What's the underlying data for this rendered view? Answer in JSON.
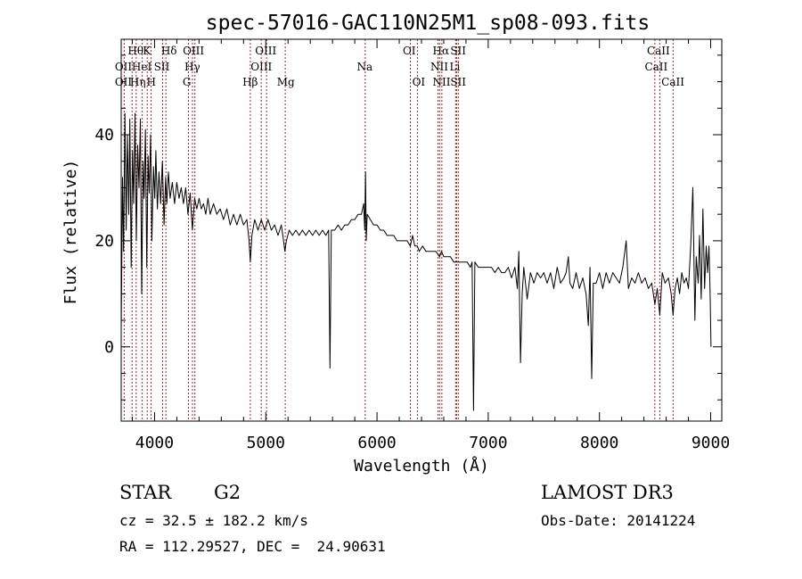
{
  "chart_data": {
    "type": "line",
    "title": "spec-57016-GAC110N25M1_sp08-093.fits",
    "xlabel": "Wavelength (Å)",
    "ylabel": "Flux (relative)",
    "xlim": [
      3700,
      9100
    ],
    "ylim": [
      -14,
      58
    ],
    "xticks": [
      4000,
      5000,
      6000,
      7000,
      8000,
      9000
    ],
    "xtick_labels": [
      "4000",
      "5000",
      "6000",
      "7000",
      "8000",
      "9000"
    ],
    "yticks": [
      0,
      20,
      40
    ],
    "ytick_labels": [
      "0",
      "20",
      "40"
    ],
    "grid": false,
    "legend": "none",
    "series": [
      {
        "name": "flux",
        "points": [
          [
            3700,
            3
          ],
          [
            3712,
            32
          ],
          [
            3722,
            18
          ],
          [
            3734,
            44
          ],
          [
            3745,
            22
          ],
          [
            3756,
            40
          ],
          [
            3768,
            25
          ],
          [
            3778,
            43
          ],
          [
            3790,
            15
          ],
          [
            3802,
            37
          ],
          [
            3812,
            27
          ],
          [
            3824,
            44
          ],
          [
            3836,
            20
          ],
          [
            3848,
            38
          ],
          [
            3860,
            30
          ],
          [
            3872,
            43
          ],
          [
            3884,
            10
          ],
          [
            3896,
            35
          ],
          [
            3906,
            28
          ],
          [
            3918,
            41
          ],
          [
            3930,
            15
          ],
          [
            3942,
            36
          ],
          [
            3952,
            29
          ],
          [
            3964,
            40
          ],
          [
            3976,
            20
          ],
          [
            3990,
            34
          ],
          [
            4002,
            28
          ],
          [
            4012,
            37
          ],
          [
            4025,
            26
          ],
          [
            4040,
            33
          ],
          [
            4055,
            27
          ],
          [
            4070,
            35
          ],
          [
            4085,
            23
          ],
          [
            4100,
            32
          ],
          [
            4110,
            27
          ],
          [
            4125,
            33
          ],
          [
            4140,
            28
          ],
          [
            4160,
            31
          ],
          [
            4180,
            27
          ],
          [
            4200,
            31
          ],
          [
            4220,
            28
          ],
          [
            4240,
            30
          ],
          [
            4260,
            27
          ],
          [
            4280,
            30
          ],
          [
            4300,
            25
          ],
          [
            4320,
            29
          ],
          [
            4340,
            22
          ],
          [
            4360,
            28
          ],
          [
            4380,
            26
          ],
          [
            4400,
            28
          ],
          [
            4420,
            26
          ],
          [
            4440,
            27
          ],
          [
            4460,
            25
          ],
          [
            4480,
            28
          ],
          [
            4500,
            25
          ],
          [
            4530,
            27
          ],
          [
            4560,
            25
          ],
          [
            4590,
            26
          ],
          [
            4620,
            24
          ],
          [
            4650,
            26
          ],
          [
            4680,
            23
          ],
          [
            4710,
            25
          ],
          [
            4740,
            23
          ],
          [
            4770,
            25
          ],
          [
            4800,
            23
          ],
          [
            4830,
            24
          ],
          [
            4850,
            20
          ],
          [
            4861,
            16
          ],
          [
            4875,
            21
          ],
          [
            4900,
            24
          ],
          [
            4930,
            22
          ],
          [
            4960,
            24
          ],
          [
            4990,
            22
          ],
          [
            5020,
            24
          ],
          [
            5050,
            22
          ],
          [
            5080,
            23
          ],
          [
            5110,
            21
          ],
          [
            5140,
            23
          ],
          [
            5160,
            20
          ],
          [
            5172,
            18
          ],
          [
            5185,
            20
          ],
          [
            5210,
            22
          ],
          [
            5240,
            21
          ],
          [
            5270,
            22
          ],
          [
            5300,
            21
          ],
          [
            5330,
            22
          ],
          [
            5360,
            21
          ],
          [
            5390,
            22
          ],
          [
            5420,
            21
          ],
          [
            5450,
            22
          ],
          [
            5480,
            21
          ],
          [
            5510,
            22
          ],
          [
            5540,
            21
          ],
          [
            5565,
            22
          ],
          [
            5577,
            -4
          ],
          [
            5589,
            22
          ],
          [
            5620,
            22
          ],
          [
            5650,
            23
          ],
          [
            5680,
            22
          ],
          [
            5710,
            23
          ],
          [
            5740,
            23
          ],
          [
            5770,
            24
          ],
          [
            5800,
            24
          ],
          [
            5830,
            25
          ],
          [
            5860,
            25
          ],
          [
            5880,
            27
          ],
          [
            5890,
            22
          ],
          [
            5897,
            33
          ],
          [
            5903,
            20
          ],
          [
            5912,
            25
          ],
          [
            5940,
            24
          ],
          [
            5970,
            23
          ],
          [
            6000,
            23
          ],
          [
            6030,
            22
          ],
          [
            6060,
            22
          ],
          [
            6090,
            21
          ],
          [
            6120,
            21
          ],
          [
            6150,
            21
          ],
          [
            6180,
            20
          ],
          [
            6210,
            20
          ],
          [
            6240,
            20
          ],
          [
            6270,
            20
          ],
          [
            6300,
            19
          ],
          [
            6320,
            21
          ],
          [
            6340,
            19
          ],
          [
            6363,
            19
          ],
          [
            6380,
            18
          ],
          [
            6410,
            19
          ],
          [
            6440,
            18
          ],
          [
            6470,
            18
          ],
          [
            6500,
            18
          ],
          [
            6530,
            18
          ],
          [
            6563,
            17
          ],
          [
            6580,
            18
          ],
          [
            6600,
            17
          ],
          [
            6630,
            17
          ],
          [
            6660,
            17
          ],
          [
            6690,
            16
          ],
          [
            6720,
            16
          ],
          [
            6750,
            16
          ],
          [
            6780,
            16
          ],
          [
            6810,
            16
          ],
          [
            6840,
            15
          ],
          [
            6855,
            16
          ],
          [
            6868,
            -12
          ],
          [
            6880,
            16
          ],
          [
            6910,
            15
          ],
          [
            6940,
            15
          ],
          [
            6970,
            15
          ],
          [
            7000,
            15
          ],
          [
            7030,
            15
          ],
          [
            7060,
            14
          ],
          [
            7090,
            15
          ],
          [
            7120,
            14
          ],
          [
            7150,
            14
          ],
          [
            7180,
            15
          ],
          [
            7210,
            13
          ],
          [
            7240,
            15
          ],
          [
            7262,
            11
          ],
          [
            7275,
            18
          ],
          [
            7290,
            -3
          ],
          [
            7305,
            10
          ],
          [
            7320,
            15
          ],
          [
            7350,
            9
          ],
          [
            7380,
            14
          ],
          [
            7410,
            12
          ],
          [
            7440,
            14
          ],
          [
            7470,
            13
          ],
          [
            7500,
            14
          ],
          [
            7530,
            12
          ],
          [
            7560,
            14
          ],
          [
            7590,
            11
          ],
          [
            7620,
            15
          ],
          [
            7650,
            12
          ],
          [
            7680,
            13
          ],
          [
            7700,
            14
          ],
          [
            7720,
            17
          ],
          [
            7735,
            12
          ],
          [
            7760,
            11
          ],
          [
            7790,
            14
          ],
          [
            7820,
            11
          ],
          [
            7850,
            13
          ],
          [
            7880,
            10
          ],
          [
            7900,
            4
          ],
          [
            7915,
            15
          ],
          [
            7930,
            -6
          ],
          [
            7945,
            12
          ],
          [
            7970,
            12
          ],
          [
            8000,
            14
          ],
          [
            8030,
            11
          ],
          [
            8060,
            14
          ],
          [
            8090,
            12
          ],
          [
            8120,
            14
          ],
          [
            8150,
            13
          ],
          [
            8180,
            12
          ],
          [
            8210,
            15
          ],
          [
            8240,
            20
          ],
          [
            8260,
            11
          ],
          [
            8290,
            13
          ],
          [
            8320,
            12
          ],
          [
            8350,
            14
          ],
          [
            8380,
            12
          ],
          [
            8410,
            13
          ],
          [
            8440,
            11
          ],
          [
            8470,
            12
          ],
          [
            8498,
            8
          ],
          [
            8520,
            11
          ],
          [
            8542,
            6
          ],
          [
            8565,
            14
          ],
          [
            8590,
            12
          ],
          [
            8620,
            13
          ],
          [
            8645,
            10
          ],
          [
            8662,
            6
          ],
          [
            8680,
            11
          ],
          [
            8700,
            13
          ],
          [
            8720,
            10
          ],
          [
            8740,
            14
          ],
          [
            8760,
            12
          ],
          [
            8780,
            13
          ],
          [
            8800,
            11
          ],
          [
            8820,
            19
          ],
          [
            8840,
            30
          ],
          [
            8858,
            5
          ],
          [
            8870,
            17
          ],
          [
            8888,
            12
          ],
          [
            8900,
            21
          ],
          [
            8915,
            9
          ],
          [
            8930,
            26
          ],
          [
            8945,
            11
          ],
          [
            8960,
            19
          ],
          [
            8972,
            14
          ],
          [
            8985,
            19
          ],
          [
            8995,
            10
          ],
          [
            9003,
            0
          ]
        ]
      }
    ],
    "lines": [
      {
        "label": "OII",
        "wave": 3727
      },
      {
        "label": "Hθ",
        "wave": 3798
      },
      {
        "label": "Hη",
        "wave": 3835
      },
      {
        "label": "HeI",
        "wave": 3889
      },
      {
        "label": "K",
        "wave": 3934
      },
      {
        "label": "H",
        "wave": 3969
      },
      {
        "label": "SII",
        "wave": 4072
      },
      {
        "label": "Hδ",
        "wave": 4102
      },
      {
        "label": "G",
        "wave": 4305
      },
      {
        "label": "Hγ",
        "wave": 4341
      },
      {
        "label": "OIII",
        "wave": 4363
      },
      {
        "label": "Hβ",
        "wave": 4861
      },
      {
        "label": "OIII",
        "wave": 4959
      },
      {
        "label": "OIII",
        "wave": 5007
      },
      {
        "label": "Mg",
        "wave": 5175
      },
      {
        "label": "Na",
        "wave": 5894
      },
      {
        "label": "OI",
        "wave": 6300
      },
      {
        "label": "OI",
        "wave": 6363
      },
      {
        "label": "NII",
        "wave": 6548
      },
      {
        "label": "Hα",
        "wave": 6563
      },
      {
        "label": "NII",
        "wave": 6583
      },
      {
        "label": "Li",
        "wave": 6707
      },
      {
        "label": "SII",
        "wave": 6716
      },
      {
        "label": "SII",
        "wave": 6731
      },
      {
        "label": "CaII",
        "wave": 8498
      },
      {
        "label": "CaII",
        "wave": 8542
      },
      {
        "label": "CaII",
        "wave": 8662
      }
    ],
    "line_label_rows": [
      {
        "words": [
          "Hθ",
          "K",
          "Hδ",
          "OIII",
          "OIII",
          "OI",
          "Hα",
          "SII",
          "CaII"
        ],
        "waves": [
          3830,
          3930,
          4130,
          4350,
          5000,
          6290,
          6575,
          6730,
          8530
        ]
      },
      {
        "words": [
          "OII",
          "HeI",
          "SII",
          "Hγ",
          "OIII",
          "Na",
          "NII",
          "Li",
          "CaII"
        ],
        "waves": [
          3720,
          3885,
          4065,
          4340,
          4960,
          5890,
          6560,
          6700,
          8510
        ]
      },
      {
        "words": [
          "OII",
          "Hη",
          "H",
          "G",
          "Hβ",
          "Mg",
          "OI",
          "NII",
          "SII",
          "CaII"
        ],
        "waves": [
          3720,
          3850,
          3970,
          4290,
          4860,
          5180,
          6375,
          6580,
          6730,
          8660
        ]
      }
    ]
  },
  "info": {
    "obj_class": "STAR",
    "subclass": "G2",
    "survey": "LAMOST DR3",
    "cz": "cz = 32.5 ± 182.2 km/s",
    "obs_date": "Obs-Date: 20141224",
    "radec": "RA = 112.29527, DEC =  24.90631"
  },
  "colors": {
    "spectrum": "#000000",
    "line_marker": "#b22222",
    "text": "#000000"
  }
}
